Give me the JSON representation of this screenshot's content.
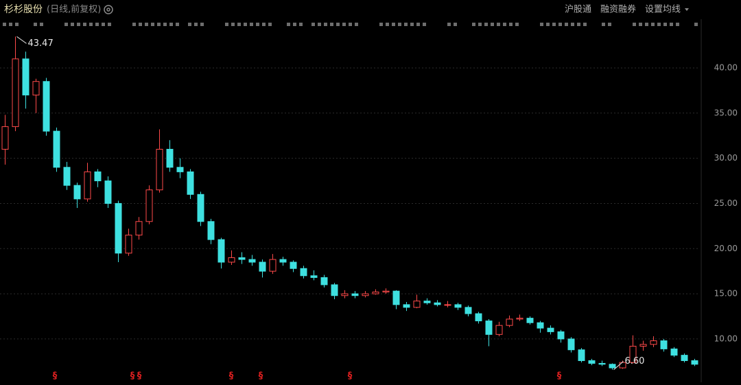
{
  "header": {
    "title": "杉杉股份",
    "subtitle": "(日线,前复权)",
    "menu": [
      "沪股通",
      "融资融券",
      "设置均线"
    ]
  },
  "chart_data": {
    "type": "candlestick",
    "up_color": "#ff4a4a",
    "down_color": "#3ee0e0",
    "grid": true,
    "ylim": [
      6.5,
      44.1
    ],
    "yticks": [
      {
        "value": 10,
        "label": "10.00"
      },
      {
        "value": 15,
        "label": "15.00"
      },
      {
        "value": 20,
        "label": "20.00"
      },
      {
        "value": 25,
        "label": "25.00"
      },
      {
        "value": 30,
        "label": "30.00"
      },
      {
        "value": 35,
        "label": "35.00"
      },
      {
        "value": 40,
        "label": "40.00"
      }
    ],
    "open": [
      31,
      33.5,
      41,
      37,
      38.5,
      33,
      29,
      27,
      25.5,
      28.5,
      27.5,
      25,
      19.5,
      21.5,
      23,
      26.5,
      31,
      29,
      28.5,
      26,
      23,
      21,
      18.5,
      19,
      18.8,
      18.5,
      17.5,
      18.8,
      18.5,
      17.8,
      17,
      16.8,
      16,
      14.8,
      15,
      14.8,
      15,
      15.2,
      15.3,
      13.8,
      13.5,
      14.2,
      14,
      13.8,
      13.8,
      13.5,
      12.8,
      12,
      10.5,
      11.5,
      12.2,
      12.3,
      11.8,
      11.2,
      10.8,
      10,
      8.8,
      7.6,
      7.3,
      7.2,
      6.8,
      7.4,
      9.2,
      9.4,
      9.8,
      8.9,
      8.2,
      7.6
    ],
    "high": [
      34.8,
      43.47,
      41.8,
      38.8,
      38.9,
      33.4,
      29.6,
      27.3,
      29.5,
      28.8,
      28,
      25.3,
      22.2,
      23.5,
      27,
      33.2,
      32,
      30,
      28.8,
      26.3,
      23.3,
      21.2,
      19.8,
      19.6,
      19.3,
      18.8,
      19.4,
      19.1,
      18.7,
      18.1,
      17.6,
      17.1,
      16.2,
      15.4,
      15.3,
      15.3,
      15.5,
      15.6,
      15.4,
      14.1,
      14.9,
      14.5,
      14.3,
      14.2,
      14,
      13.7,
      13,
      12.2,
      11.9,
      12.6,
      12.7,
      12.5,
      12,
      11.5,
      11,
      10.2,
      9,
      7.8,
      7.6,
      7.3,
      7.6,
      10.4,
      9.8,
      10.3,
      10,
      9.1,
      8.4,
      7.8
    ],
    "low": [
      29.3,
      33,
      35.5,
      35,
      32.5,
      28.5,
      26.5,
      24.5,
      25.2,
      26.8,
      24.5,
      18.5,
      19.2,
      21,
      22.7,
      26.2,
      28.5,
      27.8,
      25.5,
      22.5,
      20.5,
      17.8,
      18.2,
      18.3,
      18.1,
      16.8,
      17.2,
      18.1,
      17.4,
      16.7,
      16.5,
      15.7,
      14.4,
      14.5,
      14.5,
      14.6,
      14.9,
      15,
      13.3,
      13.1,
      13.4,
      13.8,
      13.6,
      13.5,
      13.2,
      12.5,
      11.7,
      9.2,
      10.3,
      11.3,
      12,
      11.6,
      10.7,
      10.5,
      9.6,
      8.5,
      7.4,
      7.1,
      7,
      6.6,
      6.7,
      7.3,
      8.7,
      9.1,
      8.6,
      8,
      7.4,
      7
    ],
    "close": [
      33.5,
      41,
      37,
      38.5,
      33,
      29,
      27,
      25.5,
      28.5,
      27.5,
      25,
      19.5,
      21.5,
      23,
      26.5,
      31,
      29,
      28.5,
      26,
      23,
      21,
      18.5,
      19,
      18.8,
      18.5,
      17.5,
      18.8,
      18.5,
      17.8,
      17,
      16.8,
      16,
      14.8,
      15,
      14.8,
      15,
      15.2,
      15.3,
      13.8,
      13.5,
      14.2,
      14,
      13.8,
      13.8,
      13.5,
      12.8,
      12,
      10.5,
      11.5,
      12.2,
      12.3,
      11.8,
      11.2,
      10.8,
      10,
      8.8,
      7.6,
      7.3,
      7.2,
      6.8,
      7.4,
      9.2,
      9.4,
      9.8,
      8.9,
      8.2,
      7.6,
      7.2
    ],
    "annotations": [
      43.47,
      {
        "value": 6.6,
        "label": "6.60"
      }
    ],
    "event_markers": [
      "§",
      "§",
      "§",
      "§",
      "§",
      "§",
      "§"
    ]
  }
}
